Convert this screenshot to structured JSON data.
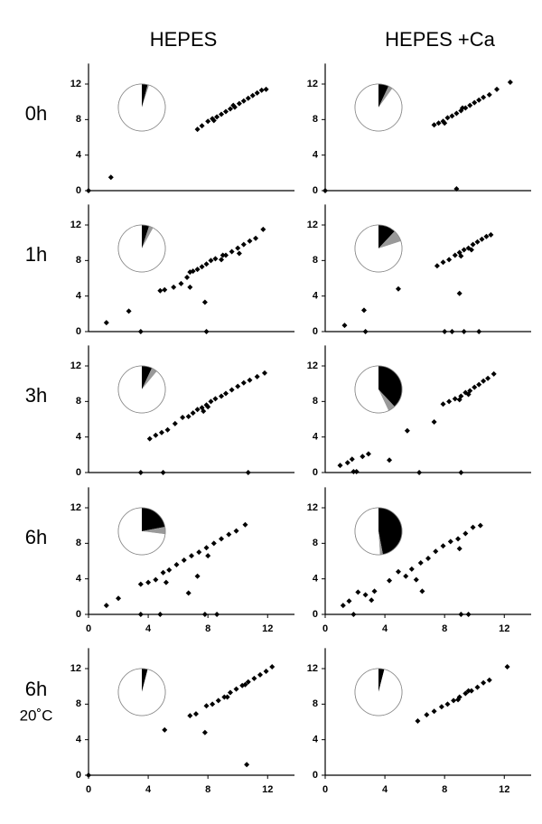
{
  "chart_data": [
    {
      "type": "scatter",
      "column_title": "HEPES",
      "row_label": "0h",
      "color": "#000000",
      "x": [
        0,
        1.5,
        7.3,
        7.6,
        8,
        8.3,
        8.6,
        8.9,
        9.2,
        9.5,
        9.8,
        10.1,
        10.4,
        10.7,
        11,
        11.3,
        11.6,
        11.9,
        8.4,
        9.7
      ],
      "values": [
        0,
        1.5,
        6.9,
        7.3,
        7.8,
        8.1,
        8.3,
        8.6,
        8.9,
        9.2,
        9.4,
        9.8,
        10.1,
        10.4,
        10.7,
        11,
        11.3,
        11.4,
        7.9,
        9.6
      ],
      "xlim": [
        0,
        13.8
      ],
      "ylim": [
        0,
        14.3
      ],
      "yticks": [
        0,
        4,
        8,
        12
      ],
      "inset_pie": {
        "values": [
          4,
          1,
          95
        ],
        "colors": [
          "#000000",
          "#999999",
          "#ffffff"
        ]
      }
    },
    {
      "type": "scatter",
      "column_title": "HEPES +Ca",
      "color": "#000000",
      "x": [
        0,
        8.8,
        7.3,
        7.6,
        7.9,
        8.2,
        8.5,
        8.8,
        9.1,
        9.4,
        9.7,
        10,
        10.3,
        10.6,
        11,
        11.5,
        12.4,
        8,
        9.2
      ],
      "values": [
        0,
        0.2,
        7.4,
        7.6,
        7.8,
        8.2,
        8.4,
        8.7,
        9,
        9.3,
        9.6,
        9.9,
        10.2,
        10.5,
        10.8,
        11.4,
        12.2,
        7.6,
        9.3
      ],
      "xlim": [
        0,
        13.8
      ],
      "ylim": [
        0,
        14.3
      ],
      "yticks": [
        0,
        4,
        8,
        12
      ],
      "inset_pie": {
        "values": [
          7,
          3,
          90
        ],
        "colors": [
          "#000000",
          "#999999",
          "#ffffff"
        ]
      }
    },
    {
      "type": "scatter",
      "row_label": "1h",
      "color": "#000000",
      "x": [
        1.2,
        2.7,
        3.5,
        7.9,
        7.8,
        6.8,
        4.8,
        5.1,
        5.7,
        6.2,
        6.6,
        6.8,
        7,
        7.3,
        7.6,
        7.9,
        8.2,
        8.5,
        8.9,
        9.2,
        9.6,
        10,
        10.4,
        10.8,
        11.2,
        11.7,
        9,
        10.1
      ],
      "values": [
        1,
        2.3,
        0,
        0,
        3.3,
        5,
        4.6,
        4.7,
        5,
        5.4,
        6.1,
        6.7,
        6.8,
        7,
        7.3,
        7.6,
        8,
        8.2,
        8.1,
        8.6,
        9,
        9.4,
        9.8,
        10.2,
        10.5,
        11.5,
        8.6,
        8.8
      ],
      "xlim": [
        0,
        13.8
      ],
      "ylim": [
        0,
        14.3
      ],
      "yticks": [
        0,
        4,
        8,
        12
      ],
      "inset_pie": {
        "values": [
          5,
          3,
          92
        ],
        "colors": [
          "#000000",
          "#999999",
          "#ffffff"
        ]
      }
    },
    {
      "type": "scatter",
      "color": "#000000",
      "x": [
        1.3,
        2.6,
        2.7,
        4.9,
        8,
        8.5,
        9.3,
        10.3,
        9,
        7.5,
        7.9,
        8.3,
        8.7,
        9,
        9.3,
        9.6,
        9.9,
        10.2,
        10.5,
        10.8,
        11.1,
        9.1,
        9.8
      ],
      "values": [
        0.7,
        2.4,
        0,
        4.8,
        0,
        0,
        0,
        0,
        4.3,
        7.4,
        7.8,
        8.1,
        8.6,
        8.9,
        9.2,
        9.4,
        9.8,
        10.1,
        10.4,
        10.7,
        10.9,
        8.5,
        9.2
      ],
      "xlim": [
        0,
        13.8
      ],
      "ylim": [
        0,
        14.3
      ],
      "yticks": [
        0,
        4,
        8,
        12
      ],
      "inset_pie": {
        "values": [
          12,
          8,
          80
        ],
        "colors": [
          "#000000",
          "#999999",
          "#ffffff"
        ]
      }
    },
    {
      "type": "scatter",
      "row_label": "3h",
      "color": "#000000",
      "x": [
        3.5,
        5,
        10.7,
        4.1,
        4.5,
        4.9,
        5.3,
        5.8,
        6.3,
        6.7,
        7,
        7.3,
        7.6,
        7.9,
        8.2,
        8.5,
        8.9,
        9.2,
        9.6,
        10,
        10.4,
        10.8,
        11.3,
        11.8,
        7.7,
        8
      ],
      "values": [
        0,
        0,
        0,
        3.8,
        4.2,
        4.5,
        4.8,
        5.5,
        6.2,
        6.3,
        6.7,
        7.1,
        7.3,
        7.6,
        8,
        8.3,
        8.6,
        8.9,
        9.3,
        9.7,
        10.1,
        10.4,
        10.8,
        11.2,
        6.9,
        7.4
      ],
      "xlim": [
        0,
        13.8
      ],
      "ylim": [
        0,
        14.3
      ],
      "yticks": [
        0,
        4,
        8,
        12
      ],
      "inset_pie": {
        "values": [
          7,
          4,
          89
        ],
        "colors": [
          "#000000",
          "#999999",
          "#ffffff"
        ]
      }
    },
    {
      "type": "scatter",
      "color": "#000000",
      "x": [
        1,
        1.5,
        1.8,
        1.9,
        2.1,
        2.5,
        2.9,
        4.3,
        6.3,
        9.1,
        5.5,
        7.3,
        7.9,
        8.3,
        8.7,
        9.1,
        9.4,
        9.7,
        10,
        10.3,
        10.6,
        10.9,
        11.3,
        9,
        9.6
      ],
      "values": [
        0.8,
        1.1,
        1.5,
        0.1,
        0.1,
        1.8,
        2.1,
        1.4,
        0,
        0,
        4.7,
        5.7,
        7.7,
        8,
        8.3,
        8.6,
        9,
        9.2,
        9.6,
        9.9,
        10.3,
        10.6,
        11.1,
        8.2,
        8.8
      ],
      "xlim": [
        0,
        13.8
      ],
      "ylim": [
        0,
        14.3
      ],
      "yticks": [
        0,
        4,
        8,
        12
      ],
      "inset_pie": {
        "values": [
          38,
          5,
          57
        ],
        "colors": [
          "#000000",
          "#999999",
          "#ffffff"
        ]
      }
    },
    {
      "type": "scatter",
      "row_label": "6h",
      "color": "#000000",
      "x": [
        1.2,
        2,
        3.5,
        4.8,
        7.8,
        8.6,
        6.7,
        7.3,
        3.5,
        4,
        4.5,
        5,
        5.4,
        5.9,
        6.4,
        6.9,
        7.4,
        7.9,
        8.4,
        8.9,
        9.4,
        9.9,
        10.5,
        5.2,
        8
      ],
      "values": [
        1,
        1.8,
        0,
        0,
        0,
        0,
        2.4,
        4.3,
        3.4,
        3.6,
        3.9,
        4.7,
        5,
        5.6,
        6.1,
        6.6,
        7,
        7.5,
        8,
        8.5,
        9,
        9.4,
        10.1,
        3.6,
        6.6
      ],
      "xlim": [
        0,
        13.8
      ],
      "ylim": [
        0,
        14.3
      ],
      "yticks": [
        0,
        4,
        8,
        12
      ],
      "xticks": [
        0,
        4,
        8,
        12
      ],
      "inset_pie": {
        "values": [
          22,
          5,
          73
        ],
        "colors": [
          "#000000",
          "#999999",
          "#ffffff"
        ]
      }
    },
    {
      "type": "scatter",
      "color": "#000000",
      "x": [
        1.2,
        1.6,
        1.9,
        2.2,
        2.7,
        3.1,
        3.3,
        4.3,
        4.9,
        5.4,
        6.1,
        6.5,
        5.8,
        6.4,
        6.9,
        7.4,
        7.9,
        8.4,
        8.9,
        9.4,
        9.9,
        10.4,
        9,
        9.1,
        9.6
      ],
      "values": [
        1,
        1.5,
        0,
        2.5,
        2.2,
        1.6,
        2.6,
        3.8,
        4.8,
        4.3,
        3.9,
        2.6,
        5.1,
        5.8,
        6.3,
        7.1,
        7.7,
        8.2,
        8.5,
        9.1,
        9.8,
        10,
        7.4,
        0,
        0
      ],
      "xlim": [
        0,
        13.8
      ],
      "ylim": [
        0,
        14.3
      ],
      "yticks": [
        0,
        4,
        8,
        12
      ],
      "xticks": [
        0,
        4,
        8,
        12
      ],
      "inset_pie": {
        "values": [
          47,
          2,
          51
        ],
        "colors": [
          "#000000",
          "#999999",
          "#ffffff"
        ]
      }
    },
    {
      "type": "scatter",
      "row_label": "6h",
      "row_sublabel": "20˚C",
      "color": "#000000",
      "x": [
        0,
        5.1,
        7.8,
        10.6,
        6.8,
        7.2,
        7.9,
        8.3,
        8.7,
        9.1,
        9.5,
        9.9,
        10.3,
        10.7,
        11.1,
        11.5,
        11.9,
        12.3,
        9.3,
        10.5
      ],
      "values": [
        0,
        5.1,
        4.8,
        1.2,
        6.7,
        6.9,
        7.8,
        8,
        8.4,
        8.8,
        9.3,
        9.7,
        10.1,
        10.5,
        10.9,
        11.3,
        11.7,
        12.2,
        8.8,
        10.2
      ],
      "xlim": [
        0,
        13.8
      ],
      "ylim": [
        0,
        14.3
      ],
      "yticks": [
        0,
        4,
        8,
        12
      ],
      "xticks": [
        0,
        4,
        8,
        12
      ],
      "inset_pie": {
        "values": [
          4,
          0,
          96
        ],
        "colors": [
          "#000000",
          "#999999",
          "#ffffff"
        ]
      }
    },
    {
      "type": "scatter",
      "color": "#000000",
      "x": [
        6.2,
        6.8,
        7.3,
        7.8,
        8.2,
        8.6,
        9,
        9.4,
        9.8,
        10.2,
        10.6,
        11,
        12.2,
        8.9,
        9.6
      ],
      "values": [
        6.1,
        6.8,
        7.2,
        7.7,
        8,
        8.4,
        8.8,
        9.2,
        9.5,
        9.9,
        10.4,
        10.7,
        12.2,
        8.5,
        9.5
      ],
      "xlim": [
        0,
        13.8
      ],
      "ylim": [
        0,
        14.3
      ],
      "yticks": [
        0,
        4,
        8,
        12
      ],
      "xticks": [
        0,
        4,
        8,
        12
      ],
      "inset_pie": {
        "values": [
          4,
          0,
          96
        ],
        "colors": [
          "#000000",
          "#999999",
          "#ffffff"
        ]
      }
    }
  ]
}
